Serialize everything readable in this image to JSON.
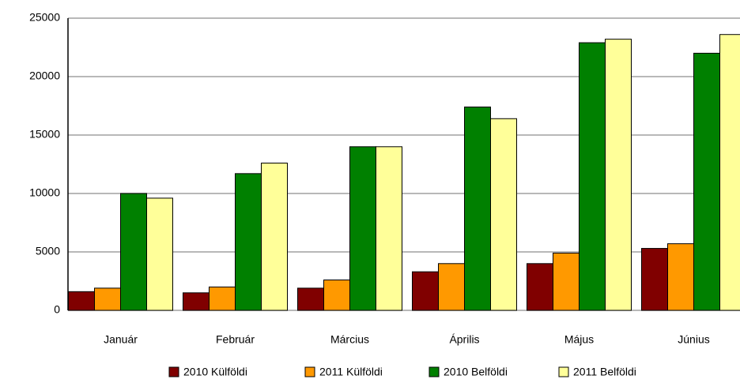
{
  "chart_data": {
    "type": "bar",
    "categories": [
      "Január",
      "Február",
      "Március",
      "Április",
      "Május",
      "Június"
    ],
    "series": [
      {
        "name": "2010 Külföldi",
        "color": "#800000",
        "values": [
          1600,
          1500,
          1900,
          3300,
          4000,
          5300
        ]
      },
      {
        "name": "2011 Külföldi",
        "color": "#ff9900",
        "values": [
          1900,
          2000,
          2600,
          4000,
          4900,
          5700
        ]
      },
      {
        "name": "2010 Belföldi",
        "color": "#008000",
        "values": [
          10000,
          11700,
          14000,
          17400,
          22900,
          22000
        ]
      },
      {
        "name": "2011 Belföldi",
        "color": "#ffff99",
        "values": [
          9600,
          12600,
          14000,
          16400,
          23200,
          23600
        ]
      }
    ],
    "ylim": [
      0,
      25000
    ],
    "yticks": [
      0,
      5000,
      10000,
      15000,
      20000,
      25000
    ],
    "grid": true,
    "legend": "bottom"
  }
}
